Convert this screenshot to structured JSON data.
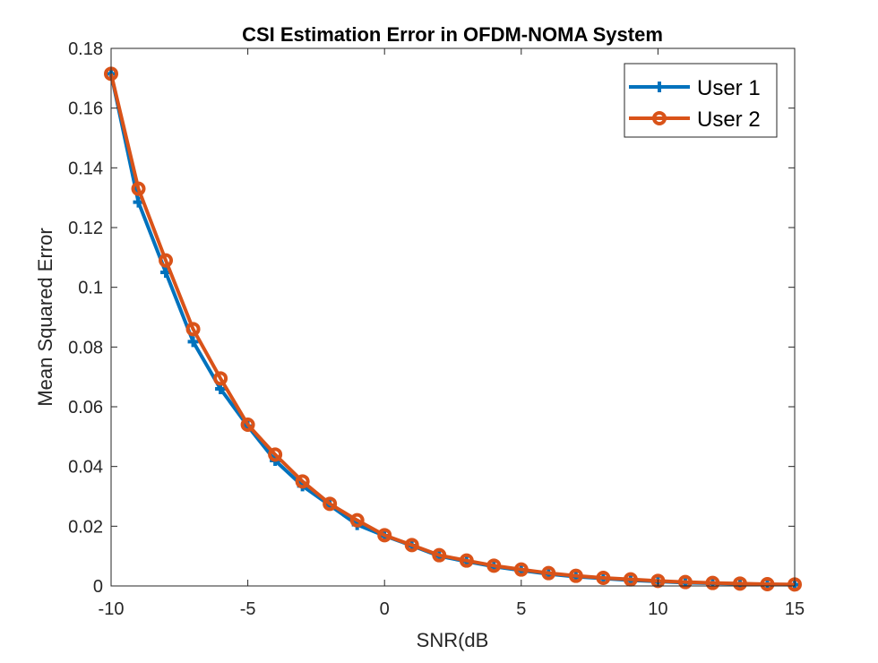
{
  "chart_data": {
    "type": "line",
    "title": "CSI Estimation Error in OFDM-NOMA System",
    "xlabel": "SNR(dB",
    "ylabel": "Mean Squared Error",
    "xlim": [
      -10,
      15
    ],
    "ylim": [
      0,
      0.18
    ],
    "xticks": [
      -10,
      -5,
      0,
      5,
      10,
      15
    ],
    "xtick_labels": [
      "-10",
      "-5",
      "0",
      "5",
      "10",
      "15"
    ],
    "yticks": [
      0,
      0.02,
      0.04,
      0.06,
      0.08,
      0.1,
      0.12,
      0.14,
      0.16,
      0.18
    ],
    "ytick_labels": [
      "0",
      "0.02",
      "0.04",
      "0.06",
      "0.08",
      "0.1",
      "0.12",
      "0.14",
      "0.16",
      "0.18"
    ],
    "grid": false,
    "legend_position": "top-right",
    "x": [
      -10,
      -9,
      -8,
      -7,
      -6,
      -5,
      -4,
      -3,
      -2,
      -1,
      0,
      1,
      2,
      3,
      4,
      5,
      6,
      7,
      8,
      9,
      10,
      11,
      12,
      13,
      14,
      15
    ],
    "series": [
      {
        "name": "User 1",
        "color": "#0072BD",
        "marker": "plus",
        "values": [
          0.1715,
          0.1285,
          0.105,
          0.0818,
          0.066,
          0.0535,
          0.042,
          0.0335,
          0.027,
          0.0205,
          0.0168,
          0.0135,
          0.01,
          0.0082,
          0.0065,
          0.0052,
          0.004,
          0.0031,
          0.0025,
          0.0019,
          0.0015,
          0.0011,
          0.0009,
          0.0007,
          0.0005,
          0.0004
        ]
      },
      {
        "name": "User 2",
        "color": "#D95319",
        "marker": "circle",
        "values": [
          0.1715,
          0.133,
          0.109,
          0.086,
          0.0695,
          0.054,
          0.044,
          0.035,
          0.0275,
          0.022,
          0.017,
          0.0137,
          0.0103,
          0.0085,
          0.0068,
          0.0055,
          0.0043,
          0.0034,
          0.0027,
          0.0022,
          0.0017,
          0.0013,
          0.001,
          0.0008,
          0.0006,
          0.0005
        ]
      }
    ]
  }
}
